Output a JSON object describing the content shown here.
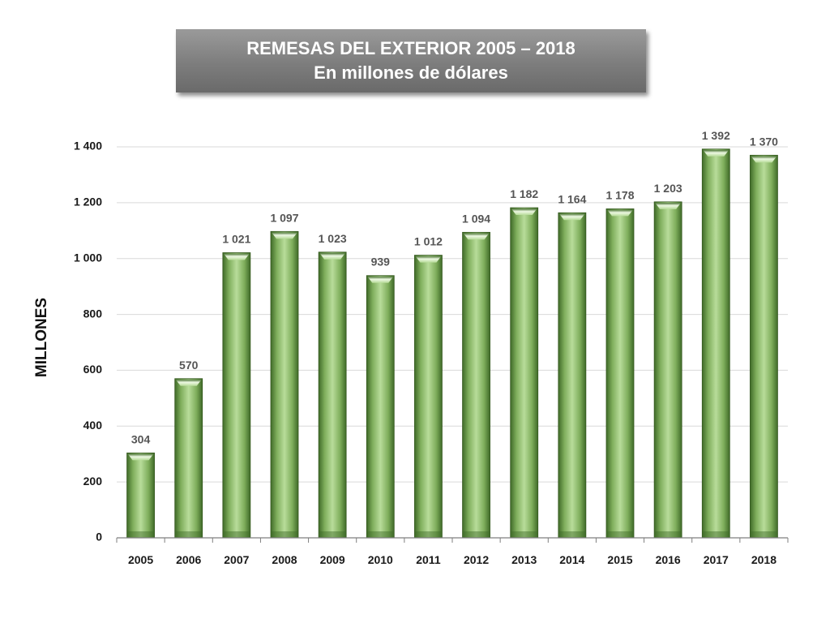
{
  "header": {
    "title_line1": "REMESAS DEL EXTERIOR 2005 – 2018",
    "title_line2": "En millones de dólares"
  },
  "colors": {
    "bar_light": "#b8dc9a",
    "bar_mid": "#7fae5c",
    "bar_dark": "#3f6a28",
    "gridline": "#d9d9d9",
    "axis": "#7f7f7f"
  },
  "chart_data": {
    "type": "bar",
    "title": "REMESAS DEL EXTERIOR 2005 – 2018",
    "subtitle": "En millones de dólares",
    "xlabel": "",
    "ylabel": "MILLONES",
    "categories": [
      "2005",
      "2006",
      "2007",
      "2008",
      "2009",
      "2010",
      "2011",
      "2012",
      "2013",
      "2014",
      "2015",
      "2016",
      "2017",
      "2018"
    ],
    "values": [
      304,
      570,
      1021,
      1097,
      1023,
      939,
      1012,
      1094,
      1182,
      1164,
      1178,
      1203,
      1392,
      1370
    ],
    "data_labels": [
      "304",
      "570",
      "1 021",
      "1 097",
      "1 023",
      "939",
      "1 012",
      "1 094",
      "1 182",
      "1 164",
      "1 178",
      "1 203",
      "1 392",
      "1 370"
    ],
    "ylim": [
      0,
      1400
    ],
    "yticks": [
      0,
      200,
      400,
      600,
      800,
      1000,
      1200,
      1400
    ],
    "ytick_labels": [
      "0",
      "200",
      "400",
      "600",
      "800",
      "1 000",
      "1 200",
      "1 400"
    ],
    "grid": true,
    "legend": "none"
  }
}
